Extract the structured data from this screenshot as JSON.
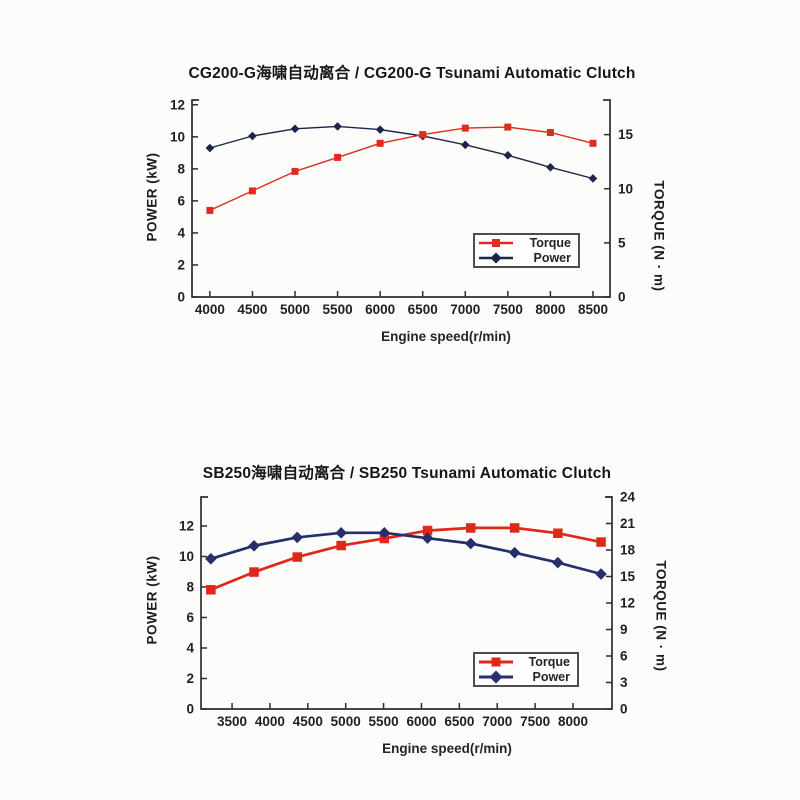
{
  "page": {
    "background": "#fcfcfa"
  },
  "chart_data": [
    {
      "type": "line",
      "title": "CG200-G海啸自动离合 / CG200-G Tsunami Automatic Clutch",
      "xlabel": "Engine speed(r/min)",
      "ylabel_left": "POWER (kW)",
      "ylabel_right": "TORQUE (N · m)",
      "x": [
        4000,
        4500,
        5000,
        5500,
        6000,
        6500,
        7000,
        7500,
        8000,
        8500
      ],
      "x_ticks": [
        4000,
        4500,
        5000,
        5500,
        6000,
        6500,
        7000,
        7500,
        8000,
        8500
      ],
      "x_tick_labels": [
        "4000",
        "4500",
        "5000",
        "5500",
        "6000",
        "6500",
        "7000",
        "7500",
        "8000",
        "8500"
      ],
      "left_ticks": [
        0,
        2,
        4,
        6,
        8,
        10,
        12
      ],
      "right_ticks": [
        0,
        5,
        10,
        15
      ],
      "xlim": [
        3790,
        8700
      ],
      "left_ylim": [
        0,
        12.3
      ],
      "right_ylim": [
        0,
        18.2
      ],
      "grid": false,
      "legend_position": "lower right",
      "legend": [
        "Torque",
        "Power"
      ],
      "series": [
        {
          "name": "Torque",
          "axis": "right",
          "unit": "N·m",
          "color": "#e02b20",
          "marker": "square",
          "values": [
            8.0,
            9.8,
            11.6,
            12.9,
            14.2,
            15.0,
            15.6,
            15.7,
            15.2,
            14.2
          ]
        },
        {
          "name": "Power",
          "axis": "left",
          "unit": "kW",
          "color": "#1d2548",
          "marker": "diamond",
          "values": [
            9.3,
            10.05,
            10.5,
            10.65,
            10.45,
            10.05,
            9.5,
            8.85,
            8.1,
            7.4
          ]
        }
      ]
    },
    {
      "type": "line",
      "title": "SB250海啸自动离合 / SB250 Tsunami Automatic Clutch",
      "xlabel": "Engine speed(r/min)",
      "ylabel_left": "POWER (kW)",
      "ylabel_right": "TORQUE (N · m)",
      "x": [
        3220,
        3790,
        4360,
        4940,
        5510,
        6080,
        6650,
        7230,
        7800,
        8370
      ],
      "x_ticks": [
        3500,
        4000,
        4500,
        5000,
        5500,
        6000,
        6500,
        7000,
        7500,
        8000
      ],
      "x_tick_labels": [
        "3500",
        "4000",
        "4500",
        "5000",
        "5500",
        "6000",
        "6500",
        "7000",
        "7500",
        "8000"
      ],
      "left_ticks": [
        0,
        2,
        4,
        6,
        8,
        10,
        12
      ],
      "right_ticks": [
        0,
        3,
        6,
        9,
        12,
        15,
        18,
        21,
        24
      ],
      "xlim": [
        3090,
        8515
      ],
      "left_ylim": [
        0,
        13.9
      ],
      "right_ylim": [
        0,
        24.0
      ],
      "grid": false,
      "legend_position": "lower right",
      "legend": [
        "Torque",
        "Power"
      ],
      "series": [
        {
          "name": "Torque",
          "axis": "right",
          "unit": "N·m",
          "color": "#e0271a",
          "marker": "square",
          "values": [
            13.5,
            15.5,
            17.2,
            18.5,
            19.3,
            20.2,
            20.5,
            20.5,
            19.9,
            18.9
          ]
        },
        {
          "name": "Power",
          "axis": "left",
          "unit": "kW",
          "color": "#262f6b",
          "marker": "diamond",
          "values": [
            9.85,
            10.7,
            11.25,
            11.55,
            11.55,
            11.2,
            10.85,
            10.25,
            9.6,
            8.85
          ]
        }
      ]
    }
  ]
}
